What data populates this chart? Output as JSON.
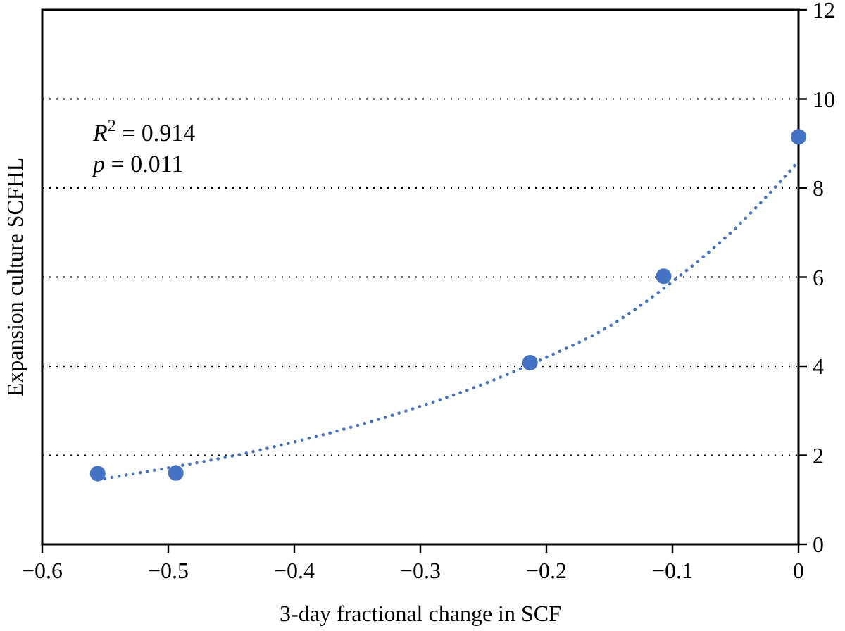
{
  "chart_data": {
    "type": "scatter",
    "xlabel": "3-day fractional change in SCF",
    "ylabel": "Expansion culture SCFHL",
    "xlim": [
      -0.6,
      0
    ],
    "xticks": [
      {
        "value": -0.6,
        "label": "−0.6"
      },
      {
        "value": -0.5,
        "label": "−0.5"
      },
      {
        "value": -0.4,
        "label": "−0.4"
      },
      {
        "value": -0.3,
        "label": "−0.3"
      },
      {
        "value": -0.2,
        "label": "−0.2"
      },
      {
        "value": -0.1,
        "label": "−0.1"
      },
      0
    ],
    "ylim": [
      0,
      12
    ],
    "yticks": [
      0,
      2,
      4,
      6,
      8,
      10,
      12
    ],
    "grid": "y",
    "annotations": [
      "R$^{2}$ = 0.914",
      "p = 0.011"
    ],
    "series": [
      {
        "color": "#4472c4",
        "marker": "circle",
        "x": [
          -0.556,
          -0.494,
          -0.213,
          -0.107,
          0
        ],
        "values": [
          1.59,
          1.6,
          4.08,
          6.02,
          9.15
        ]
      },
      {
        "type": "line",
        "color": "#4472c4",
        "line_style": "dotted",
        "x": [
          -0.556,
          -0.5,
          -0.45,
          -0.4,
          -0.35,
          -0.3,
          -0.25,
          -0.2,
          -0.15,
          -0.1,
          -0.05,
          0
        ],
        "values": [
          1.45,
          1.72,
          1.98,
          2.3,
          2.67,
          3.1,
          3.6,
          4.2,
          4.9,
          5.9,
          7.1,
          8.6
        ]
      }
    ]
  }
}
